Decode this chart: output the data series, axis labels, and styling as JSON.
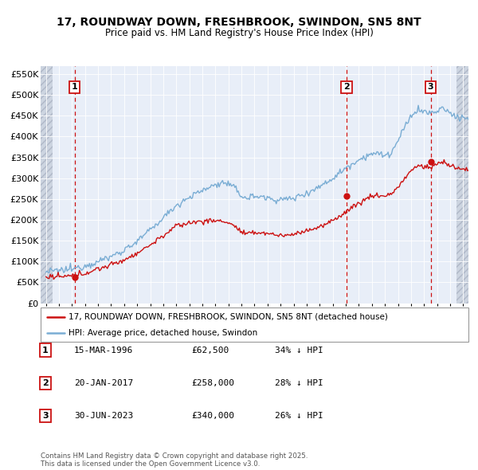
{
  "title1": "17, ROUNDWAY DOWN, FRESHBROOK, SWINDON, SN5 8NT",
  "title2": "Price paid vs. HM Land Registry's House Price Index (HPI)",
  "ylabel_ticks": [
    "£0",
    "£50K",
    "£100K",
    "£150K",
    "£200K",
    "£250K",
    "£300K",
    "£350K",
    "£400K",
    "£450K",
    "£500K",
    "£550K"
  ],
  "ytick_values": [
    0,
    50000,
    100000,
    150000,
    200000,
    250000,
    300000,
    350000,
    400000,
    450000,
    500000,
    550000
  ],
  "xmin": 1993.6,
  "xmax": 2026.4,
  "ymin": 0,
  "ymax": 570000,
  "sale_dates": [
    1996.21,
    2017.05,
    2023.5
  ],
  "sale_prices": [
    62500,
    258000,
    340000
  ],
  "sale_labels": [
    "1",
    "2",
    "3"
  ],
  "sale_info": [
    {
      "label": "1",
      "date": "15-MAR-1996",
      "price": "£62,500",
      "pct": "34% ↓ HPI"
    },
    {
      "label": "2",
      "date": "20-JAN-2017",
      "price": "£258,000",
      "pct": "28% ↓ HPI"
    },
    {
      "label": "3",
      "date": "30-JUN-2023",
      "price": "£340,000",
      "pct": "26% ↓ HPI"
    }
  ],
  "legend_line1": "17, ROUNDWAY DOWN, FRESHBROOK, SWINDON, SN5 8NT (detached house)",
  "legend_line2": "HPI: Average price, detached house, Swindon",
  "footer": "Contains HM Land Registry data © Crown copyright and database right 2025.\nThis data is licensed under the Open Government Licence v3.0.",
  "hpi_color": "#7aadd4",
  "price_color": "#cc1111",
  "bg_plot": "#e8eef8",
  "bg_hatch": "#ccd4e0",
  "grid_color": "#ffffff",
  "hatch_left_end": 1994.5,
  "hatch_right_start": 2025.5
}
